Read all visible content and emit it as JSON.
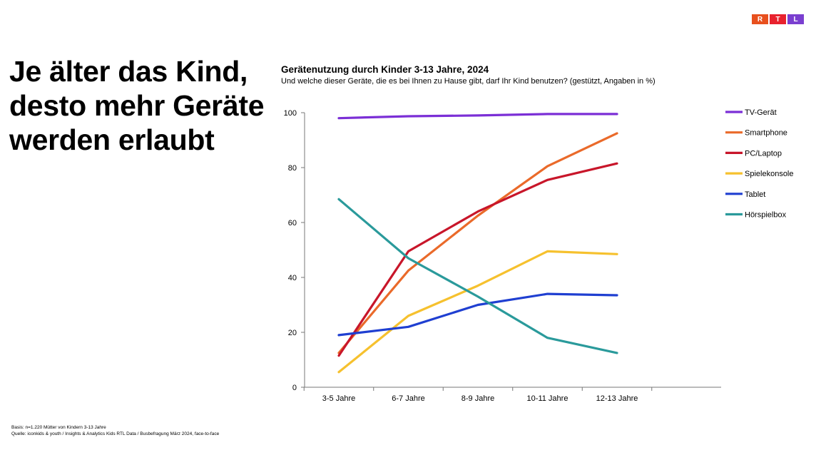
{
  "logo": {
    "letters": [
      "R",
      "T",
      "L"
    ],
    "colors": [
      "#e8501e",
      "#e8222e",
      "#7a3fd0"
    ]
  },
  "headline": [
    "Je älter das Kind,",
    "desto mehr Geräte",
    "werden erlaubt"
  ],
  "footnotes": [
    "Basis: n=1.220 Mütter von Kindern 3-13 Jahre",
    "Quelle: iconkids & youth / Insights & Analytics Kids RTL Data / Busbefragung März 2024, face-to-face"
  ],
  "chart_data": {
    "type": "line",
    "title": "Gerätenutzung durch Kinder 3-13 Jahre, 2024",
    "subtitle": "Und welche dieser Geräte, die es bei Ihnen zu Hause gibt, darf Ihr Kind benutzen? (gestützt, Angaben in %)",
    "categories": [
      "3-5 Jahre",
      "6-7 Jahre",
      "8-9 Jahre",
      "10-11 Jahre",
      "12-13 Jahre"
    ],
    "ylim": [
      0,
      100
    ],
    "yticks": [
      0,
      20,
      40,
      60,
      80,
      100
    ],
    "grid": false,
    "legend_position": "right",
    "series": [
      {
        "name": "TV-Gerät",
        "color": "#7b2fd6",
        "values": [
          98,
          98.7,
          99,
          99.5,
          99.5
        ]
      },
      {
        "name": "Smartphone",
        "color": "#ea6a2a",
        "values": [
          12.5,
          42.5,
          62.5,
          80.5,
          92.5
        ]
      },
      {
        "name": "PC/Laptop",
        "color": "#c8162a",
        "values": [
          11.5,
          49.5,
          64,
          75.5,
          81.5
        ]
      },
      {
        "name": "Spielekonsole",
        "color": "#f6c12e",
        "values": [
          5.5,
          26,
          37,
          49.5,
          48.5
        ]
      },
      {
        "name": "Tablet",
        "color": "#1f3fd1",
        "values": [
          19,
          22,
          30,
          34,
          33.5
        ]
      },
      {
        "name": "Hörspielbox",
        "color": "#2a9a9b",
        "values": [
          68.5,
          47,
          33,
          18,
          12.5
        ]
      }
    ]
  }
}
